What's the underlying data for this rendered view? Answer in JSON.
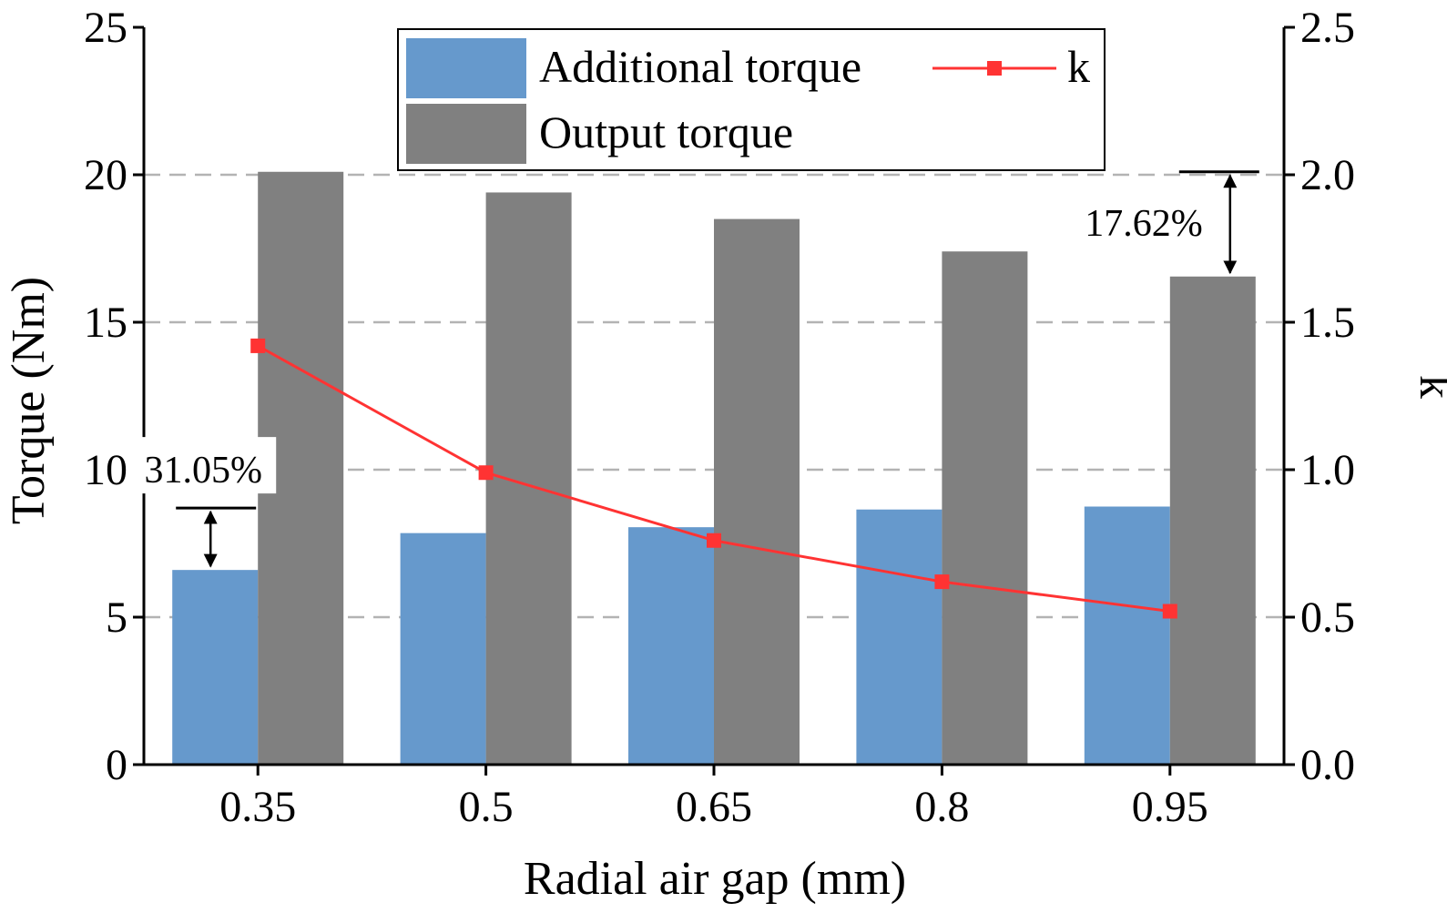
{
  "chart_data": {
    "type": "bar",
    "categories": [
      "0.35",
      "0.5",
      "0.65",
      "0.8",
      "0.95"
    ],
    "series": [
      {
        "name": "Additional torque",
        "kind": "bar",
        "axis": "left",
        "color": "#6699cc",
        "values": [
          6.6,
          7.85,
          8.05,
          8.65,
          8.75
        ]
      },
      {
        "name": "Output torque",
        "kind": "bar",
        "axis": "left",
        "color": "#808080",
        "values": [
          20.1,
          19.4,
          18.5,
          17.4,
          16.55
        ]
      },
      {
        "name": "k",
        "kind": "line",
        "axis": "right",
        "color": "#ff3333",
        "marker": "square",
        "values": [
          1.42,
          0.99,
          0.76,
          0.62,
          0.52
        ]
      }
    ],
    "xlabel": "Radial air gap (mm)",
    "ylabel": "Torque (Nm)",
    "y2label": "k",
    "ylim": [
      0,
      25
    ],
    "y2lim": [
      0,
      2.5
    ],
    "yticks": [
      "0",
      "5",
      "10",
      "15",
      "20",
      "25"
    ],
    "y2ticks": [
      "0.0",
      "0.5",
      "1.0",
      "1.5",
      "2.0",
      "2.5"
    ],
    "grid": "horizontal dashed",
    "legend": "top-center",
    "annotations": [
      {
        "text": "31.05%",
        "category": "0.35",
        "from": 8.7,
        "to": 6.6
      },
      {
        "text": "17.62%",
        "category": "0.95",
        "from": 20.1,
        "to": 16.55
      }
    ]
  }
}
